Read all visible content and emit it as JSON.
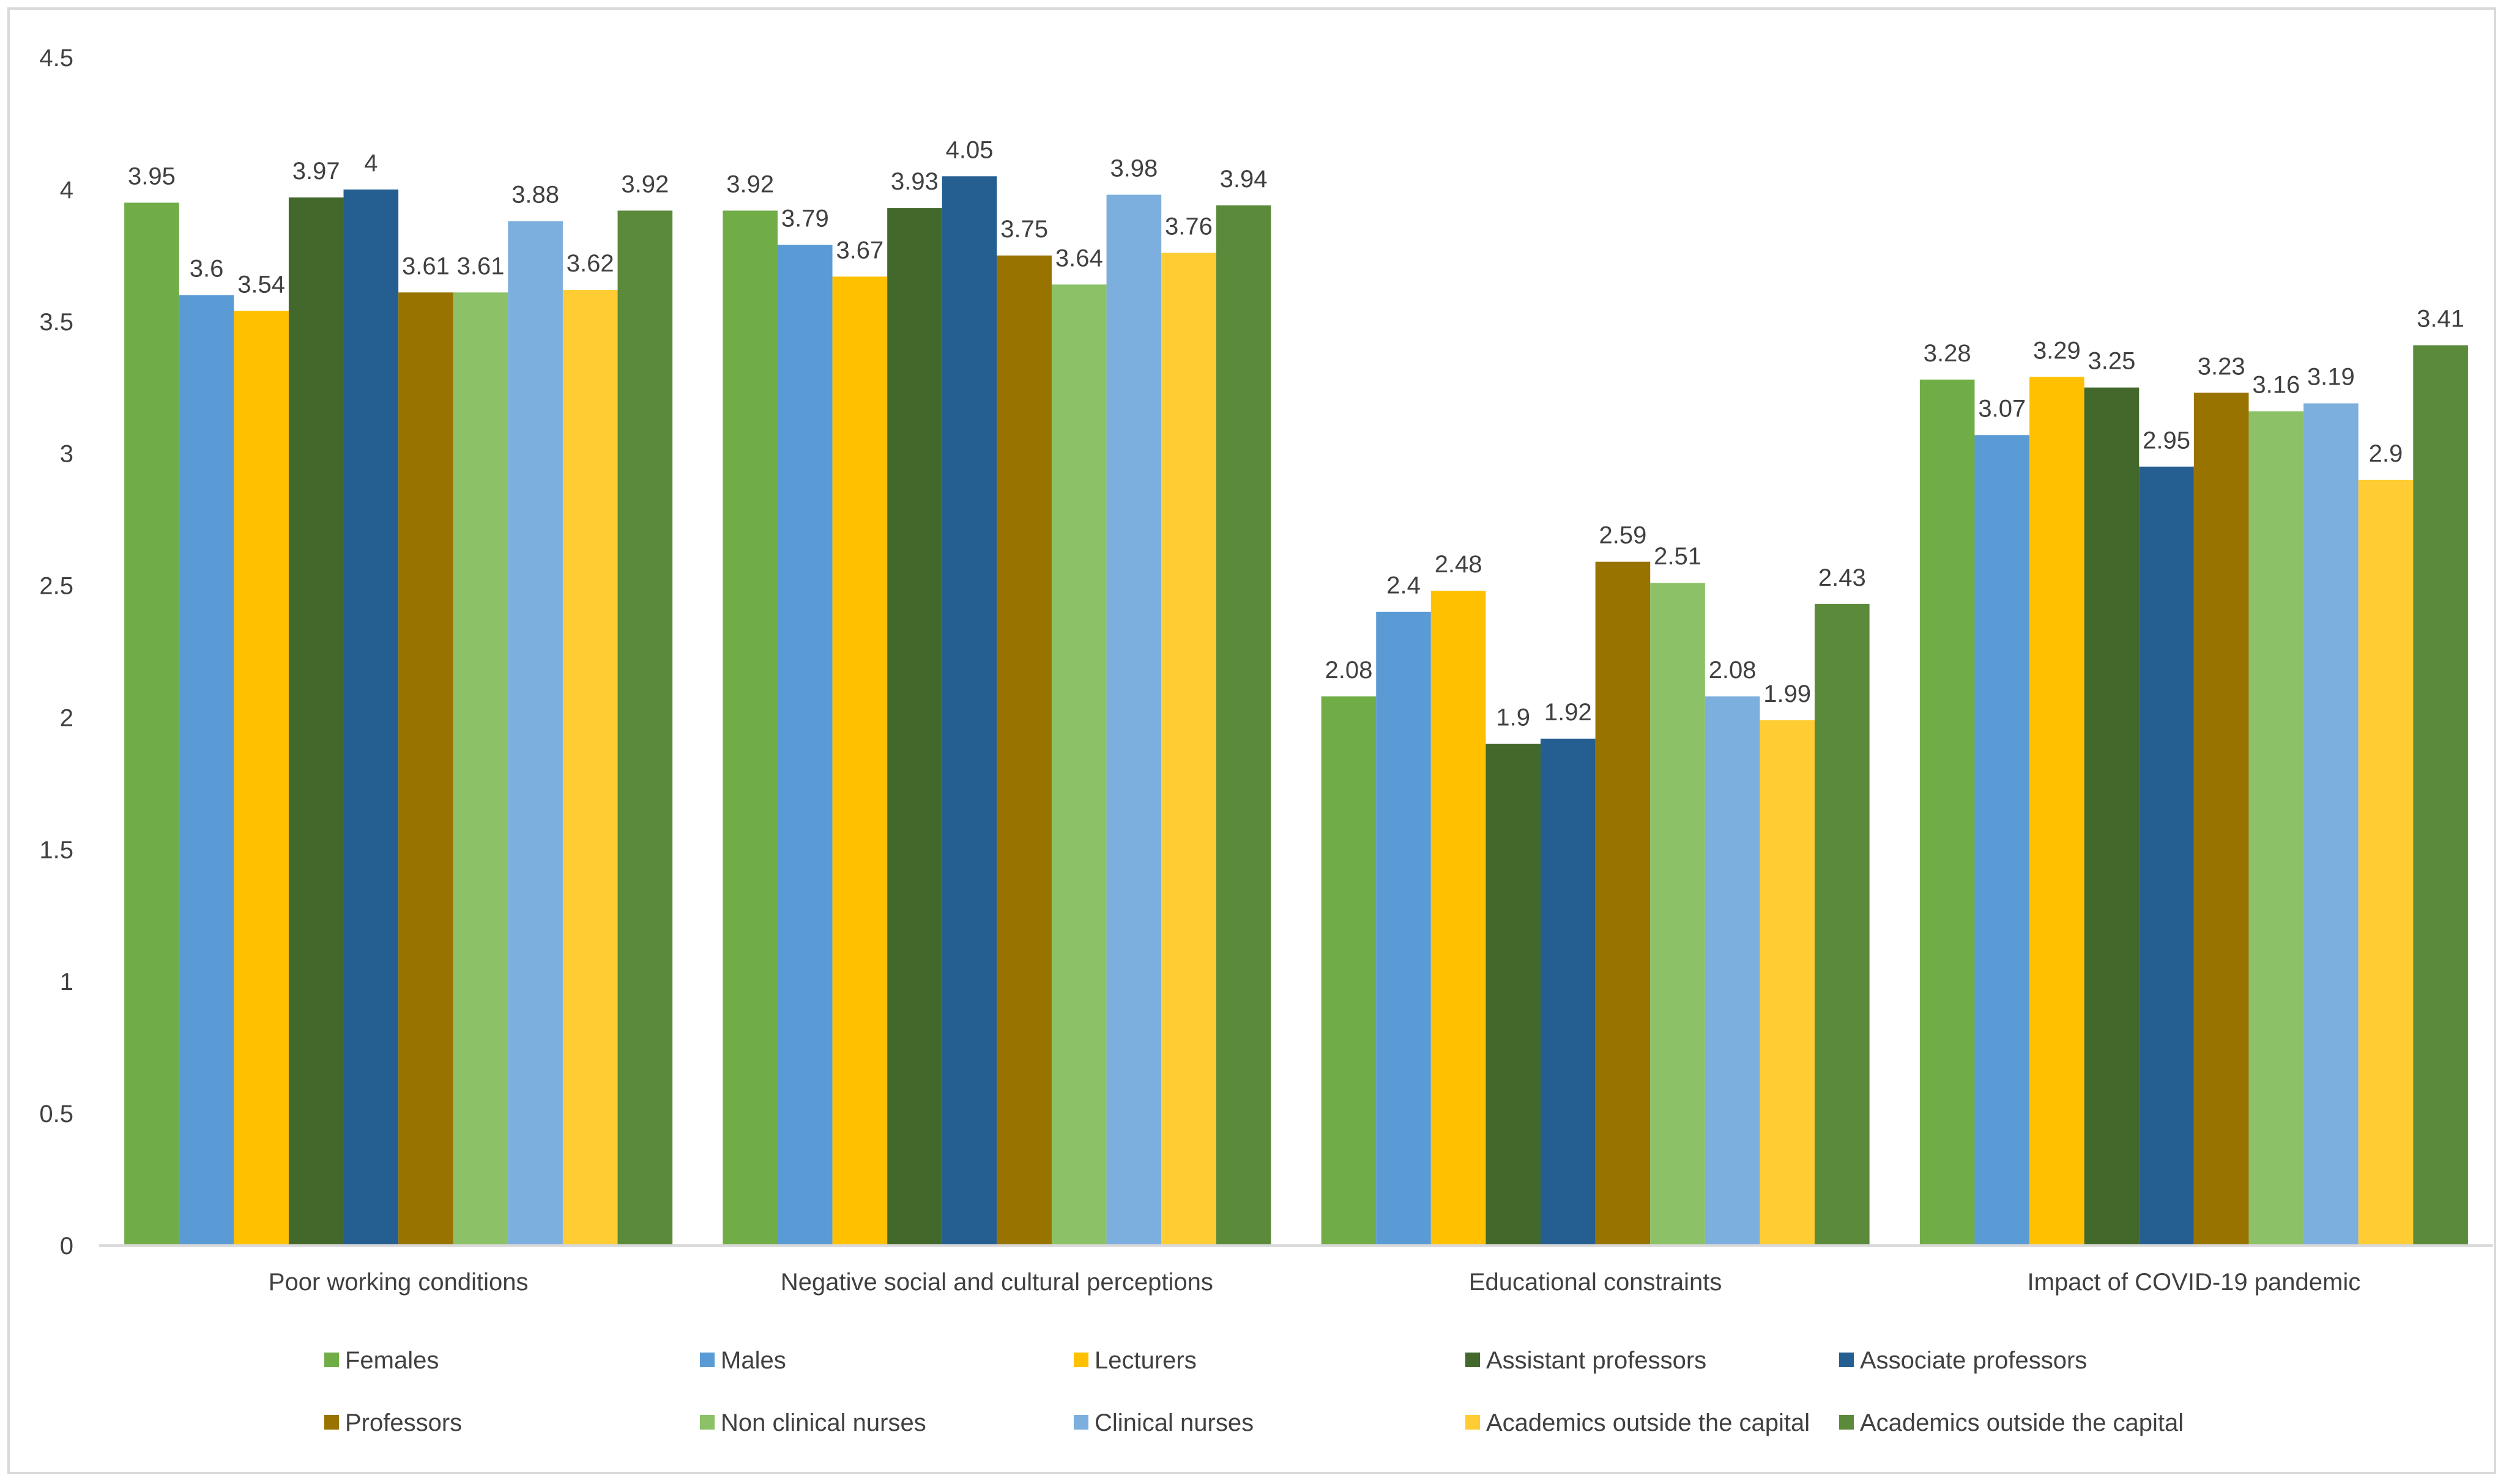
{
  "chart_data": {
    "type": "bar",
    "title": "",
    "xlabel": "",
    "ylabel": "",
    "ylim": [
      0,
      4.5
    ],
    "yticks": [
      "0",
      "0.5",
      "1",
      "1.5",
      "2",
      "2.5",
      "3",
      "3.5",
      "4",
      "4.5"
    ],
    "grid": false,
    "legend_position": "bottom",
    "categories": [
      "Poor working conditions",
      "Negative social and cultural perceptions",
      "Educational constraints",
      "Impact of COVID-19 pandemic"
    ],
    "series": [
      {
        "name": "Females",
        "color": "#70AD47",
        "values": [
          3.95,
          3.92,
          2.08,
          3.28
        ]
      },
      {
        "name": "Males",
        "color": "#5B9BD5",
        "values": [
          3.6,
          3.79,
          2.4,
          3.07
        ]
      },
      {
        "name": "Lecturers",
        "color": "#FFC000",
        "values": [
          3.54,
          3.67,
          2.48,
          3.29
        ]
      },
      {
        "name": "Assistant professors",
        "color": "#43682B",
        "values": [
          3.97,
          3.93,
          1.9,
          3.25
        ]
      },
      {
        "name": "Associate professors",
        "color": "#255E91",
        "values": [
          4,
          4.05,
          1.92,
          2.95
        ]
      },
      {
        "name": "Professors",
        "color": "#997300",
        "values": [
          3.61,
          3.75,
          2.59,
          3.23
        ]
      },
      {
        "name": "Non clinical nurses",
        "color": "#8CC168",
        "values": [
          3.61,
          3.64,
          2.51,
          3.16
        ]
      },
      {
        "name": "Clinical nurses",
        "color": "#7CAFDD",
        "values": [
          3.88,
          3.98,
          2.08,
          3.19
        ]
      },
      {
        "name": "Academics outside the capital",
        "color": "#FFCD33",
        "values": [
          3.62,
          3.76,
          1.99,
          2.9
        ]
      },
      {
        "name": "Academics outside the capital",
        "color": "#5B8A3B",
        "values": [
          3.92,
          3.94,
          2.43,
          3.41
        ]
      }
    ]
  }
}
